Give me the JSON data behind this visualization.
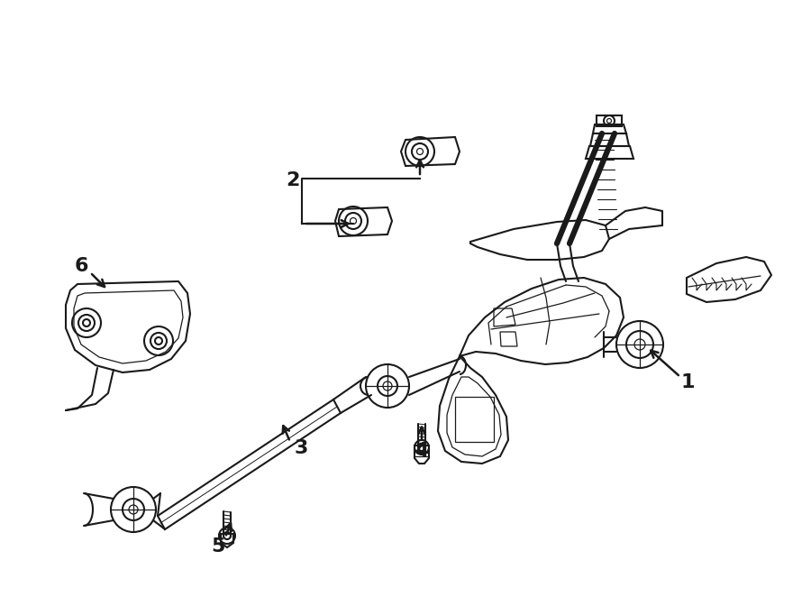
{
  "background_color": "#ffffff",
  "line_color": "#1a1a1a",
  "label_color": "#000000",
  "lw_main": 1.5,
  "lw_thin": 0.9,
  "label_fontsize": 16
}
